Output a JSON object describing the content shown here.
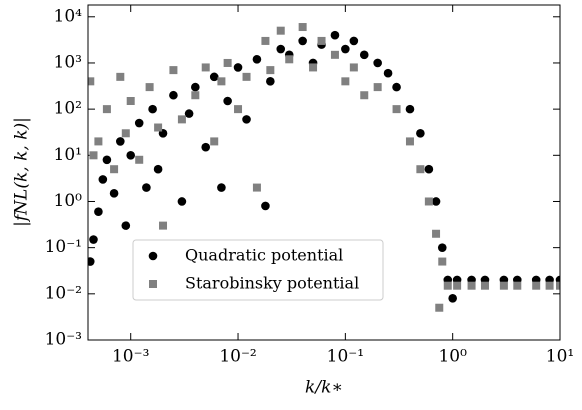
{
  "chart_data": {
    "type": "scatter",
    "xlabel": "k/k∗",
    "ylabel": "|fNL(k, k, k)|",
    "xscale": "log",
    "yscale": "log",
    "xlim": [
      0.0004,
      10
    ],
    "ylim": [
      0.001,
      18000
    ],
    "xticks": [
      {
        "value": 0.001,
        "label": "10⁻³"
      },
      {
        "value": 0.01,
        "label": "10⁻²"
      },
      {
        "value": 0.1,
        "label": "10⁻¹"
      },
      {
        "value": 1,
        "label": "10⁰"
      },
      {
        "value": 10,
        "label": "10¹"
      }
    ],
    "yticks": [
      {
        "value": 0.001,
        "label": "10⁻³"
      },
      {
        "value": 0.01,
        "label": "10⁻²"
      },
      {
        "value": 0.1,
        "label": "10⁻¹"
      },
      {
        "value": 1,
        "label": "10⁰"
      },
      {
        "value": 10,
        "label": "10¹"
      },
      {
        "value": 100,
        "label": "10²"
      },
      {
        "value": 1000,
        "label": "10³"
      },
      {
        "value": 10000,
        "label": "10⁴"
      }
    ],
    "legend": "lower left",
    "series": [
      {
        "name": "Quadratic potential",
        "color": "#000000",
        "marker": "circle",
        "x": [
          0.00042,
          0.00045,
          0.0005,
          0.00055,
          0.0006,
          0.0007,
          0.0008,
          0.0009,
          0.001,
          0.0012,
          0.0014,
          0.0016,
          0.0018,
          0.002,
          0.0025,
          0.003,
          0.0035,
          0.004,
          0.005,
          0.006,
          0.007,
          0.008,
          0.01,
          0.012,
          0.015,
          0.018,
          0.02,
          0.025,
          0.03,
          0.04,
          0.05,
          0.06,
          0.08,
          0.1,
          0.12,
          0.15,
          0.2,
          0.25,
          0.3,
          0.4,
          0.5,
          0.6,
          0.7,
          0.8,
          0.9,
          1.0,
          1.1,
          1.5,
          2,
          3,
          4,
          6,
          8,
          10
        ],
        "values": [
          0.05,
          0.15,
          0.6,
          3,
          8,
          1.5,
          20,
          0.3,
          10,
          50,
          2,
          100,
          5,
          30,
          200,
          1,
          80,
          300,
          15,
          500,
          2,
          150,
          800,
          60,
          1200,
          0.8,
          400,
          2000,
          1500,
          3000,
          1000,
          2500,
          4000,
          2000,
          3000,
          1500,
          1000,
          600,
          300,
          100,
          30,
          5,
          1,
          0.1,
          0.02,
          0.008,
          0.02,
          0.02,
          0.02,
          0.02,
          0.02,
          0.02,
          0.02,
          0.02
        ]
      },
      {
        "name": "Starobinsky potential",
        "color": "#808080",
        "marker": "square",
        "x": [
          0.00042,
          0.00045,
          0.0005,
          0.0006,
          0.0007,
          0.0008,
          0.0009,
          0.001,
          0.0012,
          0.0015,
          0.0018,
          0.002,
          0.0025,
          0.003,
          0.004,
          0.005,
          0.006,
          0.007,
          0.008,
          0.01,
          0.012,
          0.015,
          0.018,
          0.02,
          0.025,
          0.03,
          0.04,
          0.05,
          0.06,
          0.08,
          0.1,
          0.12,
          0.15,
          0.2,
          0.3,
          0.4,
          0.5,
          0.6,
          0.7,
          0.8,
          0.9,
          1.1,
          1.5,
          2,
          3,
          4,
          6,
          8,
          10,
          0.75
        ],
        "values": [
          400,
          10,
          20,
          100,
          5,
          500,
          30,
          150,
          8,
          300,
          40,
          0.3,
          700,
          60,
          200,
          800,
          20,
          400,
          1000,
          100,
          500,
          2,
          3000,
          700,
          5000,
          1200,
          6000,
          800,
          3000,
          1500,
          400,
          800,
          200,
          300,
          100,
          20,
          5,
          1,
          0.2,
          0.05,
          0.015,
          0.015,
          0.015,
          0.015,
          0.015,
          0.015,
          0.015,
          0.015,
          0.015,
          0.005
        ]
      }
    ]
  }
}
